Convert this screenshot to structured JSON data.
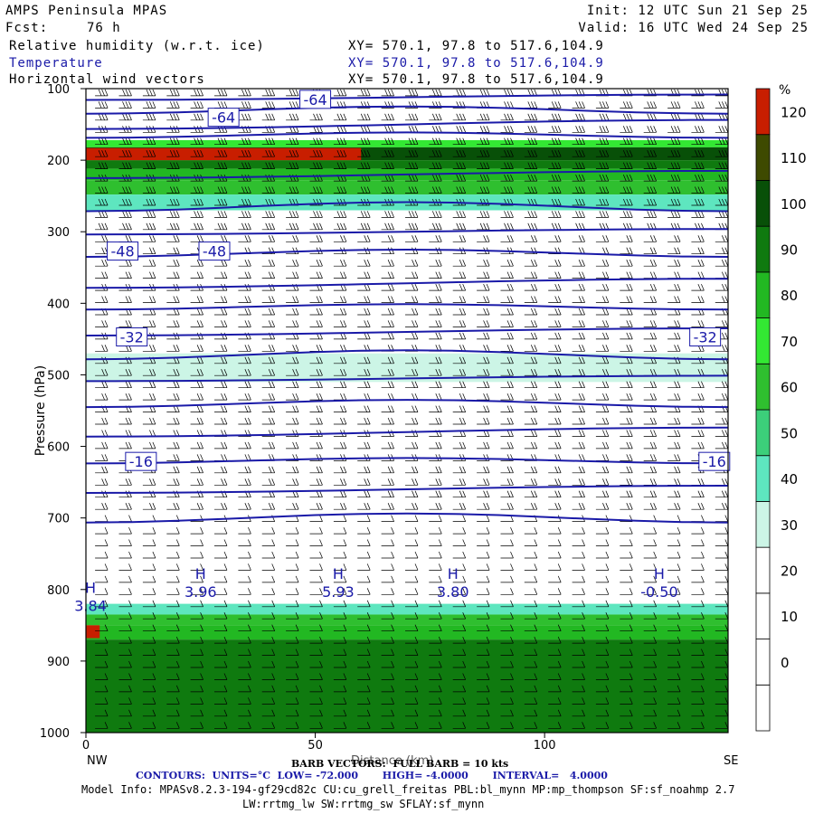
{
  "header": {
    "model": "AMPS Peninsula MPAS",
    "init": "Init: 12 UTC Sun 21 Sep 25",
    "fcst_label": "Fcst:",
    "fcst_value": "76 h",
    "valid": "Valid: 16 UTC Wed 24 Sep 25",
    "fields": [
      {
        "name": "Relative humidity (w.r.t. ice)",
        "xy": "XY= 570.1, 97.8 to 517.6,104.9"
      },
      {
        "name": "Temperature",
        "xy": "XY= 570.1, 97.8 to 517.6,104.9"
      },
      {
        "name": "Horizontal wind vectors",
        "xy": "XY= 570.1, 97.8 to 517.6,104.9"
      }
    ]
  },
  "footer": {
    "barb": "BARB VECTORS:  FULL BARB = 10 kts",
    "xlabel_overlap": "Distance (km)",
    "contours": "CONTOURS:  UNITS=°C  LOW= -72.000       HIGH= -4.0000       INTERVAL=   4.0000",
    "model_info": "Model Info: MPASv8.2.3-194-gf29cd82c CU:cu_grell_freitas PBL:bl_mynn MP:mp_thompson SF:sf_noahmp 2.7",
    "model_info2": "LW:rrtmg_lw SW:rrtmg_sw SFLAY:sf_mynn",
    "left_end": "NW",
    "right_end": "SE"
  },
  "colors": {
    "contour": "#1a1aa8",
    "rh_bins": [
      "#ffffff",
      "#ffffff",
      "#ffffff",
      "#ffffff",
      "#ffffff",
      "#ccf5e6",
      "#5ee6bf",
      "#3ccf7a",
      "#2fbf2f",
      "#33e833",
      "#22b822",
      "#0f7a0f",
      "#085008",
      "#3e4a00",
      "#c81e00",
      "#ff1a00"
    ]
  },
  "chart_data": {
    "type": "heatmap",
    "title": "Relative humidity (w.r.t. ice)",
    "ylabel": "Pressure (hPa)",
    "xlabel": "",
    "xlim": [
      0,
      140
    ],
    "ylim": [
      1000,
      100
    ],
    "x_ticks": [
      0,
      50,
      100
    ],
    "y_ticks": [
      100,
      200,
      300,
      400,
      500,
      600,
      700,
      800,
      900,
      1000
    ],
    "colorbar": {
      "unit": "%",
      "levels": [
        -10,
        0,
        10,
        20,
        30,
        40,
        50,
        60,
        70,
        80,
        90,
        100,
        110,
        120,
        130
      ],
      "labels": [
        0,
        10,
        20,
        30,
        40,
        50,
        60,
        70,
        80,
        90,
        100,
        110,
        120
      ]
    },
    "rh_layers": [
      {
        "p_top": 172,
        "p_bottom": 182,
        "rh": 75
      },
      {
        "p_top": 182,
        "p_bottom": 200,
        "rh": 105
      },
      {
        "p_top": 200,
        "p_bottom": 212,
        "rh": 95
      },
      {
        "p_top": 212,
        "p_bottom": 228,
        "rh": 80
      },
      {
        "p_top": 228,
        "p_bottom": 248,
        "rh": 60
      },
      {
        "p_top": 248,
        "p_bottom": 270,
        "rh": 40
      },
      {
        "p_top": 470,
        "p_bottom": 510,
        "rh": 32
      },
      {
        "p_top": 820,
        "p_bottom": 835,
        "rh": 45
      },
      {
        "p_top": 835,
        "p_bottom": 850,
        "rh": 65
      },
      {
        "p_top": 850,
        "p_bottom": 870,
        "rh": 80
      },
      {
        "p_top": 870,
        "p_bottom": 1000,
        "rh": 95
      }
    ],
    "rh_patches": [
      {
        "x0": 0,
        "x1": 60,
        "p_top": 183,
        "p_bottom": 200,
        "rh": 125
      },
      {
        "x0": 0,
        "x1": 3,
        "p_top": 850,
        "p_bottom": 868,
        "rh": 125
      }
    ],
    "temperature_contours": [
      {
        "t": -72,
        "p": 112
      },
      {
        "t": -68,
        "p": 130
      },
      {
        "t": -64,
        "p": 150
      },
      {
        "t": -60,
        "p": 165
      },
      {
        "t": -56,
        "p": 220
      },
      {
        "t": -52,
        "p": 265
      },
      {
        "t": -48,
        "p": 300
      },
      {
        "t": -44,
        "p": 330
      },
      {
        "t": -40,
        "p": 372
      },
      {
        "t": -36,
        "p": 405
      },
      {
        "t": -32,
        "p": 440
      },
      {
        "t": -28,
        "p": 472
      },
      {
        "t": -24,
        "p": 505
      },
      {
        "t": -20,
        "p": 540
      },
      {
        "t": -16,
        "p": 580
      },
      {
        "t": -12,
        "p": 620
      },
      {
        "t": -8,
        "p": 660
      },
      {
        "t": -4,
        "p": 700
      }
    ],
    "contour_labels": [
      {
        "text": "-64",
        "x": 50,
        "p": 115
      },
      {
        "text": "-64",
        "x": 30,
        "p": 140
      },
      {
        "text": "-48",
        "x": 8,
        "p": 327
      },
      {
        "text": "-48",
        "x": 28,
        "p": 327
      },
      {
        "text": "-32",
        "x": 10,
        "p": 447
      },
      {
        "text": "-32",
        "x": 135,
        "p": 447
      },
      {
        "text": "-16",
        "x": 12,
        "p": 621
      },
      {
        "text": "-16",
        "x": 137,
        "p": 621
      }
    ],
    "highs": [
      {
        "text": "H",
        "value": "3.84",
        "x": 1,
        "p": 810
      },
      {
        "text": "H",
        "value": "3.96",
        "x": 25,
        "p": 790
      },
      {
        "text": "H",
        "value": "5.93",
        "x": 55,
        "p": 790
      },
      {
        "text": "H",
        "value": "3.80",
        "x": 80,
        "p": 790
      },
      {
        "text": "H",
        "value": "-0.50",
        "x": 125,
        "p": 790
      }
    ]
  }
}
